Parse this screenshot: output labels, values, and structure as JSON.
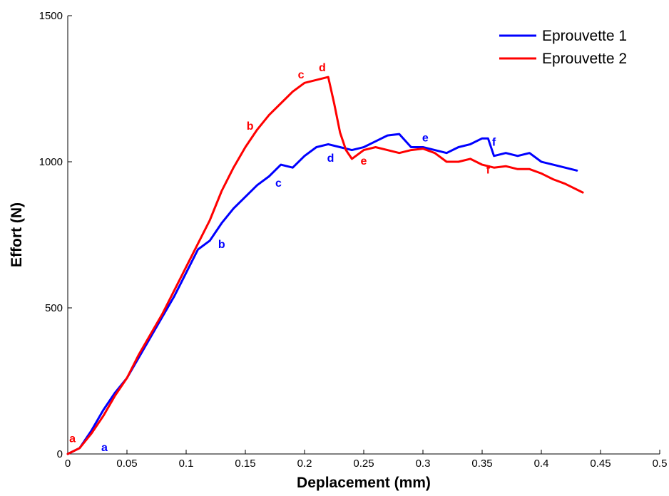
{
  "chart_data": {
    "type": "line",
    "title": "",
    "xlabel": "Deplacement (mm)",
    "ylabel": "Effort (N)",
    "xlim": [
      0,
      0.5
    ],
    "ylim": [
      0,
      1500
    ],
    "x_ticks": [
      0,
      0.05,
      0.1,
      0.15,
      0.2,
      0.25,
      0.3,
      0.35,
      0.4,
      0.45,
      0.5
    ],
    "x_tick_labels": [
      "0",
      "0.05",
      "0.1",
      "0.15",
      "0.2",
      "0.25",
      "0.3",
      "0.35",
      "0.4",
      "0.45",
      "0.5"
    ],
    "y_ticks": [
      0,
      500,
      1000,
      1500
    ],
    "y_tick_labels": [
      "0",
      "500",
      "1000",
      "1500"
    ],
    "grid": false,
    "legend_position": "top-right",
    "series": [
      {
        "name": "Eprouvette 1",
        "color": "#0000ff",
        "x": [
          0,
          0.01,
          0.02,
          0.03,
          0.04,
          0.05,
          0.06,
          0.07,
          0.08,
          0.09,
          0.1,
          0.11,
          0.12,
          0.13,
          0.14,
          0.15,
          0.16,
          0.17,
          0.18,
          0.19,
          0.2,
          0.21,
          0.22,
          0.23,
          0.24,
          0.25,
          0.26,
          0.27,
          0.28,
          0.29,
          0.3,
          0.31,
          0.32,
          0.33,
          0.34,
          0.35,
          0.355,
          0.36,
          0.37,
          0.38,
          0.39,
          0.4,
          0.41,
          0.42,
          0.43
        ],
        "y": [
          0,
          20,
          80,
          150,
          210,
          260,
          330,
          400,
          470,
          540,
          620,
          700,
          730,
          790,
          840,
          880,
          920,
          950,
          990,
          980,
          1020,
          1050,
          1060,
          1050,
          1040,
          1050,
          1070,
          1090,
          1095,
          1050,
          1050,
          1040,
          1030,
          1050,
          1060,
          1080,
          1080,
          1020,
          1030,
          1020,
          1030,
          1000,
          990,
          980,
          970
        ]
      },
      {
        "name": "Eprouvette 2",
        "color": "#ff0000",
        "x": [
          0,
          0.01,
          0.02,
          0.03,
          0.04,
          0.05,
          0.06,
          0.07,
          0.08,
          0.09,
          0.1,
          0.11,
          0.12,
          0.13,
          0.14,
          0.15,
          0.16,
          0.17,
          0.18,
          0.19,
          0.2,
          0.21,
          0.22,
          0.225,
          0.23,
          0.235,
          0.24,
          0.25,
          0.26,
          0.27,
          0.28,
          0.29,
          0.3,
          0.31,
          0.32,
          0.33,
          0.34,
          0.35,
          0.36,
          0.37,
          0.38,
          0.39,
          0.4,
          0.41,
          0.42,
          0.435
        ],
        "y": [
          0,
          20,
          70,
          130,
          200,
          260,
          340,
          410,
          480,
          560,
          640,
          720,
          800,
          900,
          980,
          1050,
          1110,
          1160,
          1200,
          1240,
          1270,
          1280,
          1290,
          1200,
          1100,
          1040,
          1010,
          1040,
          1050,
          1040,
          1030,
          1040,
          1045,
          1030,
          1000,
          1000,
          1010,
          990,
          980,
          985,
          975,
          975,
          960,
          940,
          925,
          895
        ]
      }
    ],
    "annotations": [
      {
        "text": "a",
        "color": "#ff0000",
        "x": 0.004,
        "y": 40
      },
      {
        "text": "a",
        "color": "#0000ff",
        "x": 0.031,
        "y": 10
      },
      {
        "text": "b",
        "color": "#0000ff",
        "x": 0.13,
        "y": 705
      },
      {
        "text": "b",
        "color": "#ff0000",
        "x": 0.154,
        "y": 1110
      },
      {
        "text": "c",
        "color": "#0000ff",
        "x": 0.178,
        "y": 915
      },
      {
        "text": "c",
        "color": "#ff0000",
        "x": 0.197,
        "y": 1285
      },
      {
        "text": "d",
        "color": "#0000ff",
        "x": 0.222,
        "y": 1000
      },
      {
        "text": "d",
        "color": "#ff0000",
        "x": 0.215,
        "y": 1310
      },
      {
        "text": "e",
        "color": "#0000ff",
        "x": 0.302,
        "y": 1070
      },
      {
        "text": "e",
        "color": "#ff0000",
        "x": 0.25,
        "y": 990
      },
      {
        "text": "f",
        "color": "#0000ff",
        "x": 0.36,
        "y": 1055
      },
      {
        "text": "f",
        "color": "#ff0000",
        "x": 0.355,
        "y": 960
      }
    ]
  }
}
